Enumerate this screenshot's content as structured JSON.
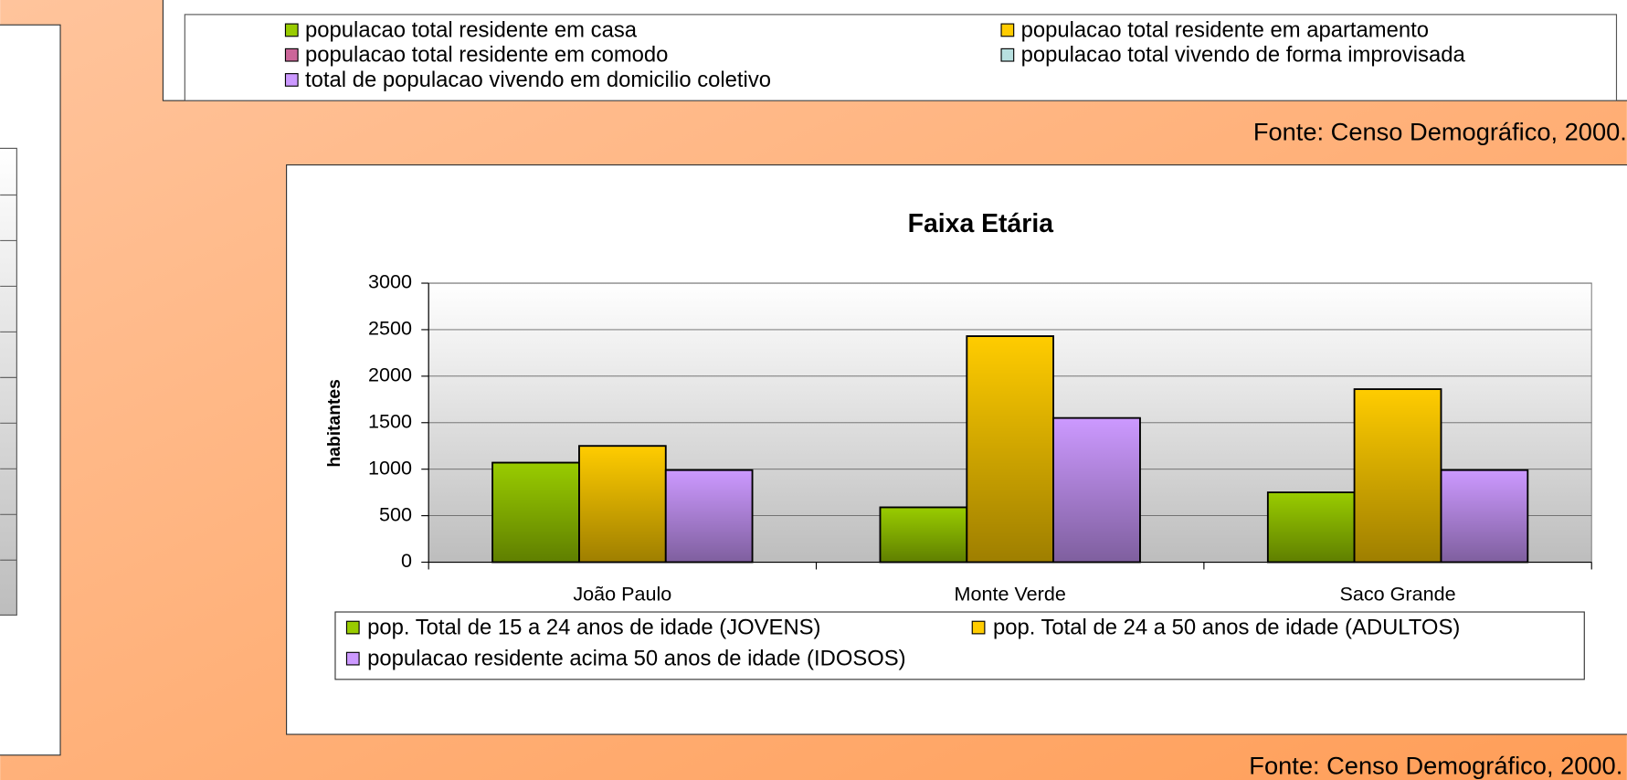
{
  "legend_panel": {
    "items": [
      {
        "label": "populacao total residente em casa",
        "color": "#99cc00"
      },
      {
        "label": "populacao total residente em apartamento",
        "color": "#ffcc00"
      },
      {
        "label": "populacao total residente em comodo",
        "color": "#cc6699"
      },
      {
        "label": "populacao total vivendo de forma improvisada",
        "color": "#b8e0e0"
      },
      {
        "label": "total de populacao vivendo em domicilio coletivo",
        "color": "#cc99ff"
      }
    ]
  },
  "sources": [
    "Fonte: Censo Demográfico, 2000.",
    "Fonte: Censo Demográfico, 2000."
  ],
  "chart_data": {
    "type": "bar",
    "title": "Faixa Etária",
    "y_label": "habitantes",
    "categories": [
      "João Paulo",
      "Monte Verde",
      "Saco Grande"
    ],
    "series": [
      {
        "name": "pop. Total de 15 a 24 anos de idade (JOVENS)",
        "color": "#99cc00",
        "values": [
          1070,
          590,
          750
        ]
      },
      {
        "name": "pop. Total de 24 a 50 anos de idade (ADULTOS)",
        "color": "#ffcc00",
        "values": [
          1250,
          2430,
          1860
        ]
      },
      {
        "name": "populacao residente acima 50 anos de idade (IDOSOS)",
        "color": "#cc99ff",
        "values": [
          990,
          1550,
          990
        ]
      }
    ],
    "ylim": [
      0,
      3000
    ],
    "yticks": [
      0,
      500,
      1000,
      1500,
      2000,
      2500,
      3000
    ],
    "grid": true
  }
}
